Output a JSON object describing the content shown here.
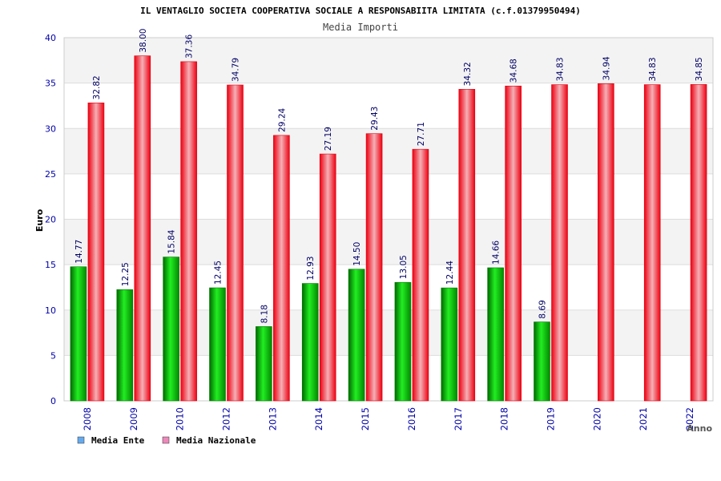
{
  "chart_data": {
    "type": "bar",
    "title": "IL VENTAGLIO SOCIETA COOPERATIVA SOCIALE A RESPONSABIITA LIMITATA (c.f.01379950494)",
    "subtitle": "Media Importi",
    "xlabel": "Anno",
    "ylabel": "Euro",
    "ylim": [
      0,
      40
    ],
    "yticks": [
      "0",
      "5",
      "10",
      "15",
      "20",
      "25",
      "30",
      "35",
      "40"
    ],
    "grid": true,
    "legend_position": "bottom-left",
    "categories": [
      "2008",
      "2009",
      "2010",
      "2012",
      "2013",
      "2014",
      "2015",
      "2016",
      "2017",
      "2018",
      "2019",
      "2020",
      "2021",
      "2022"
    ],
    "series": [
      {
        "name": "Media Ente",
        "color": "#00aa00",
        "legend_color": "#66aaee",
        "values": [
          14.77,
          12.25,
          15.84,
          12.45,
          8.18,
          12.93,
          14.5,
          13.05,
          12.44,
          14.66,
          8.69,
          null,
          null,
          null
        ],
        "labels": [
          "14.77",
          "12.25",
          "15.84",
          "12.45",
          "8.18",
          "12.93",
          "14.50",
          "13.05",
          "12.44",
          "14.66",
          "8.69",
          "",
          "",
          ""
        ]
      },
      {
        "name": "Media Nazionale",
        "color": "#ee1122",
        "legend_color": "#ee88bb",
        "values": [
          32.82,
          38.0,
          37.36,
          34.79,
          29.24,
          27.19,
          29.43,
          27.71,
          34.32,
          34.68,
          34.83,
          34.94,
          34.83,
          34.85
        ],
        "labels": [
          "32.82",
          "38.00",
          "37.36",
          "34.79",
          "29.24",
          "27.19",
          "29.43",
          "27.71",
          "34.32",
          "34.68",
          "34.83",
          "34.94",
          "34.83",
          "34.85"
        ]
      }
    ]
  }
}
